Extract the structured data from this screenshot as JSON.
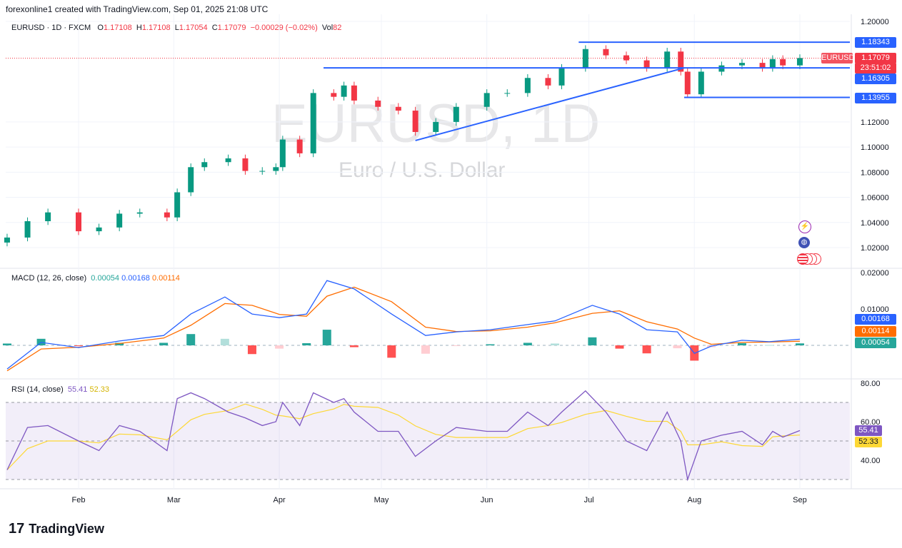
{
  "header": {
    "credit": "forexonline1 created with TradingView.com, Sep 01, 2025 21:08 UTC",
    "symbol": "EURUSD · 1D · FXCM",
    "o_label": "O",
    "o": "1.17108",
    "h_label": "H",
    "h": "1.17108",
    "l_label": "L",
    "l": "1.17054",
    "c_label": "C",
    "c": "1.17079",
    "change": "−0.00029 (−0.02%)",
    "vol_label": "Vol",
    "vol": "82"
  },
  "watermark": {
    "title": "EURUSD, 1D",
    "subtitle": "Euro / U.S. Dollar"
  },
  "price_labels": {
    "symbol_tag": "EURUSD",
    "last": "1.17079",
    "countdown": "23:51:02",
    "level1": "1.18343",
    "level2": "1.16305",
    "level3": "1.13955"
  },
  "macd": {
    "legend": "MACD (12, 26, close)",
    "hist": "0.00054",
    "macd": "0.00168",
    "signal": "0.00114"
  },
  "rsi": {
    "legend": "RSI (14, close)",
    "rsi": "55.41",
    "ma": "52.33"
  },
  "logo": "TradingView",
  "colors": {
    "up": "#089981",
    "down": "#f23645",
    "macd": "#2962ff",
    "signal": "#ff6d00",
    "rsi": "#7e57c2",
    "rsi_ma": "#fdd835",
    "lines": "#2962ff"
  },
  "chart_data": [
    {
      "type": "candlestick",
      "title": "EURUSD, 1D",
      "ylim": [
        1.01,
        1.205
      ],
      "yticks": [
        "1.20000",
        "1.12000",
        "1.10000",
        "1.08000",
        "1.06000",
        "1.04000",
        "1.02000"
      ],
      "xticks": [
        "Feb",
        "Mar",
        "Apr",
        "May",
        "Jun",
        "Jul",
        "Aug",
        "Sep"
      ],
      "x": [
        "2025-01-11",
        "2025-01-17",
        "2025-01-23",
        "2025-02-01",
        "2025-02-07",
        "2025-02-13",
        "2025-02-19",
        "2025-02-27",
        "2025-03-02",
        "2025-03-06",
        "2025-03-10",
        "2025-03-17",
        "2025-03-22",
        "2025-03-27",
        "2025-03-31",
        "2025-04-02",
        "2025-04-07",
        "2025-04-11",
        "2025-04-17",
        "2025-04-20",
        "2025-04-23",
        "2025-04-30",
        "2025-05-06",
        "2025-05-11",
        "2025-05-17",
        "2025-05-23",
        "2025-06-01",
        "2025-06-07",
        "2025-06-13",
        "2025-06-19",
        "2025-06-23",
        "2025-06-30",
        "2025-07-06",
        "2025-07-12",
        "2025-07-18",
        "2025-07-24",
        "2025-07-28",
        "2025-07-30",
        "2025-08-03",
        "2025-08-09",
        "2025-08-15",
        "2025-08-21",
        "2025-08-24",
        "2025-08-27",
        "2025-09-01"
      ],
      "close": [
        1.028,
        1.041,
        1.048,
        1.033,
        1.036,
        1.047,
        1.048,
        1.044,
        1.064,
        1.084,
        1.088,
        1.091,
        1.081,
        1.081,
        1.084,
        1.106,
        1.095,
        1.143,
        1.14,
        1.149,
        1.137,
        1.132,
        1.129,
        1.112,
        1.12,
        1.132,
        1.143,
        1.143,
        1.155,
        1.149,
        1.163,
        1.178,
        1.173,
        1.169,
        1.163,
        1.176,
        1.16,
        1.142,
        1.16,
        1.165,
        1.167,
        1.163,
        1.17,
        1.165,
        1.17079
      ],
      "levels": [
        1.18343,
        1.16305,
        1.13955
      ],
      "trendline": {
        "from": [
          "2025-05-11",
          1.1052
        ],
        "to": [
          "2025-07-29",
          1.163
        ]
      }
    },
    {
      "type": "line+histogram",
      "title": "MACD (12, 26, close)",
      "ylim": [
        -0.008,
        0.02
      ],
      "yticks": [
        "0.02000",
        "0.01000"
      ],
      "x": [
        "2025-01-11",
        "2025-01-21",
        "2025-02-01",
        "2025-02-13",
        "2025-02-26",
        "2025-03-06",
        "2025-03-16",
        "2025-03-24",
        "2025-04-01",
        "2025-04-09",
        "2025-04-15",
        "2025-04-23",
        "2025-05-04",
        "2025-05-14",
        "2025-05-23",
        "2025-06-02",
        "2025-06-13",
        "2025-06-21",
        "2025-07-02",
        "2025-07-10",
        "2025-07-18",
        "2025-07-27",
        "2025-08-01",
        "2025-08-06",
        "2025-08-15",
        "2025-08-23",
        "2025-09-01"
      ],
      "macd": [
        -0.0065,
        0.0008,
        -0.0006,
        0.0012,
        0.0027,
        0.0086,
        0.0133,
        0.0086,
        0.0076,
        0.0086,
        0.0178,
        0.0155,
        0.0086,
        0.0027,
        0.0037,
        0.0043,
        0.0057,
        0.0067,
        0.011,
        0.0086,
        0.0043,
        0.0037,
        -0.0022,
        -0.0002,
        0.0014,
        0.001,
        0.00168
      ],
      "signal": [
        -0.007,
        -0.001,
        -0.0005,
        0.0005,
        0.002,
        0.0055,
        0.0115,
        0.011,
        0.0085,
        0.008,
        0.0135,
        0.016,
        0.012,
        0.005,
        0.0038,
        0.004,
        0.005,
        0.0062,
        0.0088,
        0.0095,
        0.0065,
        0.0045,
        0.002,
        0.0003,
        0.0008,
        0.0009,
        0.00114
      ]
    },
    {
      "type": "line",
      "title": "RSI (14, close)",
      "ylim": [
        25,
        85
      ],
      "yticks": [
        "80.00",
        "60.00",
        "40.00"
      ],
      "bands": [
        70,
        50,
        30
      ],
      "rsi": [
        35,
        57,
        58,
        50,
        45,
        58,
        55,
        45,
        72,
        75,
        72,
        65,
        62,
        58,
        60,
        70,
        58,
        75,
        70,
        72,
        65,
        55,
        55,
        42,
        50,
        57,
        55,
        55,
        65,
        58,
        65,
        76,
        65,
        50,
        45,
        65,
        50,
        30,
        50,
        53,
        55,
        48,
        55,
        52,
        55.41
      ]
    }
  ]
}
